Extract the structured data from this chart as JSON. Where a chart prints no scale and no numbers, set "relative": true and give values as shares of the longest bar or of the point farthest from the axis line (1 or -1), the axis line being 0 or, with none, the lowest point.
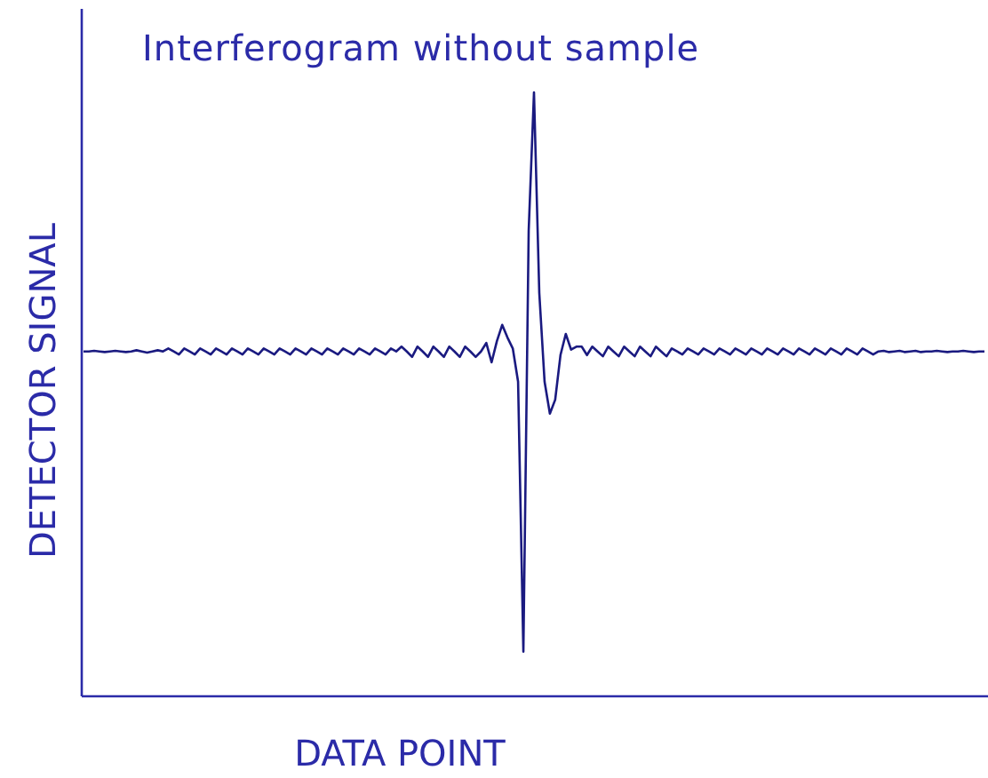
{
  "chart_data": {
    "type": "line",
    "title": "Interferogram without sample",
    "xlabel": "DATA POINT",
    "ylabel": "DETECTOR SIGNAL",
    "relative": true,
    "grid": false,
    "marker": "none",
    "line_style": "solid",
    "categories": [
      null,
      null,
      null,
      null,
      null,
      null,
      null,
      null,
      null,
      null,
      null,
      null,
      null,
      null,
      null,
      null,
      null,
      null,
      null,
      null,
      null,
      null,
      null,
      null,
      null,
      null,
      null,
      null,
      null,
      null,
      null,
      null,
      null,
      null,
      null,
      null,
      null,
      null,
      null,
      null,
      null,
      null,
      null,
      null,
      null,
      null,
      null,
      null,
      null,
      null,
      null,
      null,
      null,
      null,
      null,
      null,
      null,
      null,
      null,
      null,
      null,
      null,
      null,
      null,
      null,
      null,
      null,
      null,
      null,
      null,
      null,
      null,
      null,
      null,
      null,
      null,
      null,
      null,
      null,
      null,
      null,
      null,
      null,
      null,
      null,
      null,
      null,
      null,
      null,
      null,
      null,
      null,
      null,
      null,
      null,
      null,
      null,
      null,
      null,
      null,
      null,
      null,
      null,
      null,
      null,
      null,
      null,
      null,
      null,
      null,
      null,
      null,
      null,
      null,
      null,
      null,
      null,
      null,
      null,
      null,
      null,
      null,
      null,
      null,
      null,
      null,
      null,
      null,
      null,
      null,
      null,
      null,
      null,
      null,
      null,
      null,
      null,
      null,
      null,
      null,
      null,
      null,
      null,
      null,
      null,
      null,
      null,
      null,
      null,
      null,
      null,
      null,
      null,
      null,
      null,
      null,
      null,
      null,
      null,
      null,
      null,
      null,
      null,
      null,
      null,
      null,
      null,
      null,
      null,
      null,
      null
    ],
    "series": [
      {
        "color": "#1a1a80",
        "values": [
          0.571,
          0.571,
          0.572,
          0.571,
          0.57,
          0.571,
          0.572,
          0.571,
          0.57,
          0.571,
          0.573,
          0.571,
          0.569,
          0.571,
          0.573,
          0.571,
          0.576,
          0.571,
          0.566,
          0.576,
          0.571,
          0.566,
          0.576,
          0.571,
          0.566,
          0.576,
          0.571,
          0.566,
          0.576,
          0.571,
          0.566,
          0.576,
          0.571,
          0.566,
          0.576,
          0.571,
          0.566,
          0.576,
          0.571,
          0.566,
          0.576,
          0.571,
          0.566,
          0.576,
          0.571,
          0.566,
          0.576,
          0.571,
          0.566,
          0.576,
          0.571,
          0.566,
          0.576,
          0.571,
          0.566,
          0.576,
          0.571,
          0.566,
          0.576,
          0.571,
          0.579,
          0.571,
          0.562,
          0.579,
          0.571,
          0.562,
          0.579,
          0.571,
          0.562,
          0.579,
          0.571,
          0.562,
          0.579,
          0.571,
          0.562,
          0.571,
          0.585,
          0.553,
          0.588,
          0.615,
          0.594,
          0.576,
          0.521,
          0.074,
          0.771,
          1.0,
          0.668,
          0.521,
          0.468,
          0.491,
          0.565,
          0.6,
          0.574,
          0.579,
          0.579,
          0.565,
          0.579,
          0.571,
          0.563,
          0.579,
          0.571,
          0.563,
          0.579,
          0.571,
          0.563,
          0.579,
          0.571,
          0.563,
          0.579,
          0.571,
          0.563,
          0.576,
          0.571,
          0.566,
          0.576,
          0.571,
          0.566,
          0.576,
          0.571,
          0.566,
          0.576,
          0.571,
          0.566,
          0.576,
          0.571,
          0.566,
          0.576,
          0.571,
          0.566,
          0.576,
          0.571,
          0.566,
          0.576,
          0.571,
          0.566,
          0.576,
          0.571,
          0.566,
          0.576,
          0.571,
          0.566,
          0.576,
          0.571,
          0.566,
          0.576,
          0.571,
          0.566,
          0.576,
          0.571,
          0.566,
          0.571,
          0.572,
          0.57,
          0.571,
          0.572,
          0.57,
          0.571,
          0.572,
          0.57,
          0.571,
          0.571,
          0.572,
          0.571,
          0.57,
          0.571,
          0.571,
          0.572,
          0.571,
          0.57,
          0.571,
          0.571
        ]
      }
    ]
  }
}
